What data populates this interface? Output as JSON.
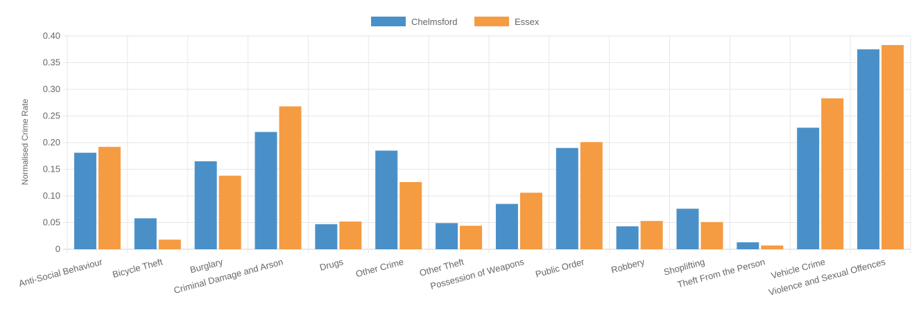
{
  "chart_data": {
    "type": "bar",
    "title": "",
    "xlabel": "",
    "ylabel": "Normalised Crime Rate",
    "ylim": [
      0,
      0.4
    ],
    "yticks": [
      "0",
      "0.05",
      "0.10",
      "0.15",
      "0.20",
      "0.25",
      "0.30",
      "0.35",
      "0.40"
    ],
    "ytick_values": [
      0,
      0.05,
      0.1,
      0.15,
      0.2,
      0.25,
      0.3,
      0.35,
      0.4
    ],
    "grid": true,
    "legend_position": "top-center",
    "categories": [
      "Anti-Social Behaviour",
      "Bicycle Theft",
      "Burglary",
      "Criminal Damage and Arson",
      "Drugs",
      "Other Crime",
      "Other Theft",
      "Possession of Weapons",
      "Public Order",
      "Robbery",
      "Shoplifting",
      "Theft From the Person",
      "Vehicle Crime",
      "Violence and Sexual Offences"
    ],
    "series": [
      {
        "name": "Chelmsford",
        "color": "#4a90c8",
        "values": [
          0.181,
          0.058,
          0.165,
          0.22,
          0.047,
          0.185,
          0.049,
          0.085,
          0.19,
          0.043,
          0.076,
          0.013,
          0.228,
          0.375
        ]
      },
      {
        "name": "Essex",
        "color": "#f59b42",
        "values": [
          0.192,
          0.018,
          0.138,
          0.268,
          0.052,
          0.126,
          0.044,
          0.106,
          0.201,
          0.053,
          0.051,
          0.007,
          0.283,
          0.383
        ]
      }
    ]
  }
}
